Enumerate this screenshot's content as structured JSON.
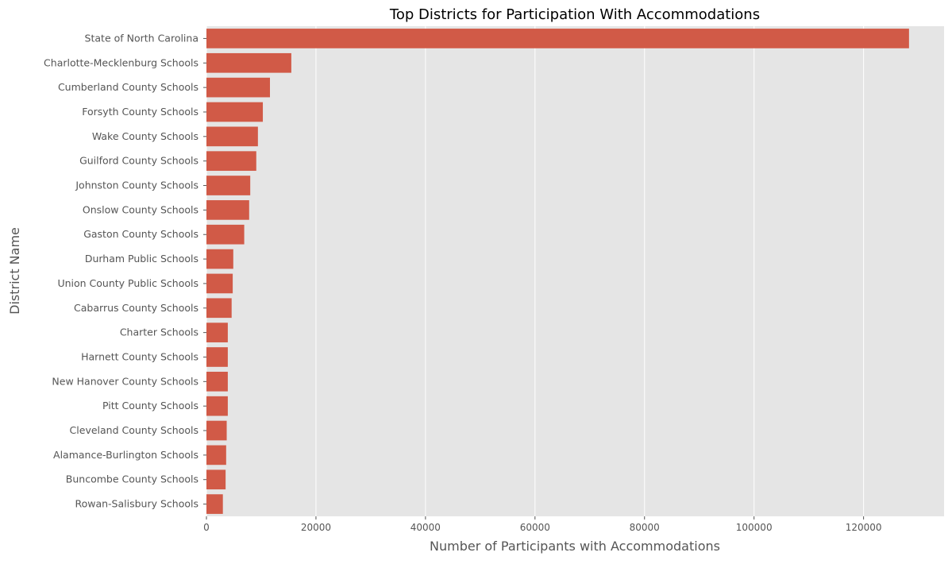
{
  "chart_data": {
    "type": "bar",
    "orientation": "horizontal",
    "title": "Top Districts for Participation With Accommodations",
    "xlabel": "Number of Participants with Accommodations",
    "ylabel": "District Name",
    "xlim": [
      0,
      134700
    ],
    "xticks": [
      0,
      20000,
      40000,
      60000,
      80000,
      100000,
      120000
    ],
    "grid": true,
    "bar_color": "#d15a47",
    "background_color": "#e5e5e5",
    "categories": [
      "State of North Carolina",
      "Charlotte-Mecklenburg Schools",
      "Cumberland County Schools",
      "Forsyth County Schools",
      "Wake County Schools",
      "Guilford County Schools",
      "Johnston County Schools",
      "Onslow County Schools",
      "Gaston County Schools",
      "Durham Public Schools",
      "Union County Public Schools",
      "Cabarrus County Schools",
      "Charter Schools",
      "Harnett County Schools",
      "New Hanover County Schools",
      "Pitt County Schools",
      "Cleveland County Schools",
      "Alamance-Burlington Schools",
      "Buncombe County Schools",
      "Rowan-Salisbury Schools"
    ],
    "values": [
      128300,
      15500,
      11600,
      10300,
      9400,
      9100,
      8000,
      7800,
      6900,
      4900,
      4800,
      4600,
      3900,
      3900,
      3900,
      3900,
      3700,
      3600,
      3500,
      3000
    ]
  }
}
